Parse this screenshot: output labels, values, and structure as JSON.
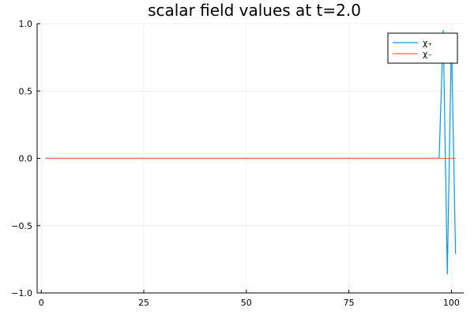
{
  "chart_data": {
    "type": "line",
    "title": "scalar field values at t=2.0",
    "xlabel": "",
    "ylabel": "",
    "xlim": [
      -1,
      103
    ],
    "ylim": [
      -1.0,
      1.0
    ],
    "x_ticks": [
      {
        "value": 0,
        "label": "0"
      },
      {
        "value": 25,
        "label": "25"
      },
      {
        "value": 50,
        "label": "50"
      },
      {
        "value": 75,
        "label": "75"
      },
      {
        "value": 100,
        "label": "100"
      }
    ],
    "y_ticks": [
      {
        "value": -1.0,
        "label": "−1.0"
      },
      {
        "value": -0.5,
        "label": "−0.5"
      },
      {
        "value": 0.0,
        "label": "0.0"
      },
      {
        "value": 0.5,
        "label": "0.5"
      },
      {
        "value": 1.0,
        "label": "1.0"
      }
    ],
    "grid": true,
    "legend_position": "top-right",
    "series": [
      {
        "name": "χ₊",
        "color": "#009af9",
        "points": [
          [
            1,
            0
          ],
          [
            96,
            0
          ],
          [
            97,
            0.0
          ],
          [
            98,
            0.95
          ],
          [
            99,
            -0.86
          ],
          [
            100,
            0.9
          ],
          [
            101,
            -0.71
          ]
        ]
      },
      {
        "name": "χ₋",
        "color": "#e26f46",
        "points": [
          [
            1,
            0
          ],
          [
            101,
            0
          ]
        ]
      }
    ]
  }
}
